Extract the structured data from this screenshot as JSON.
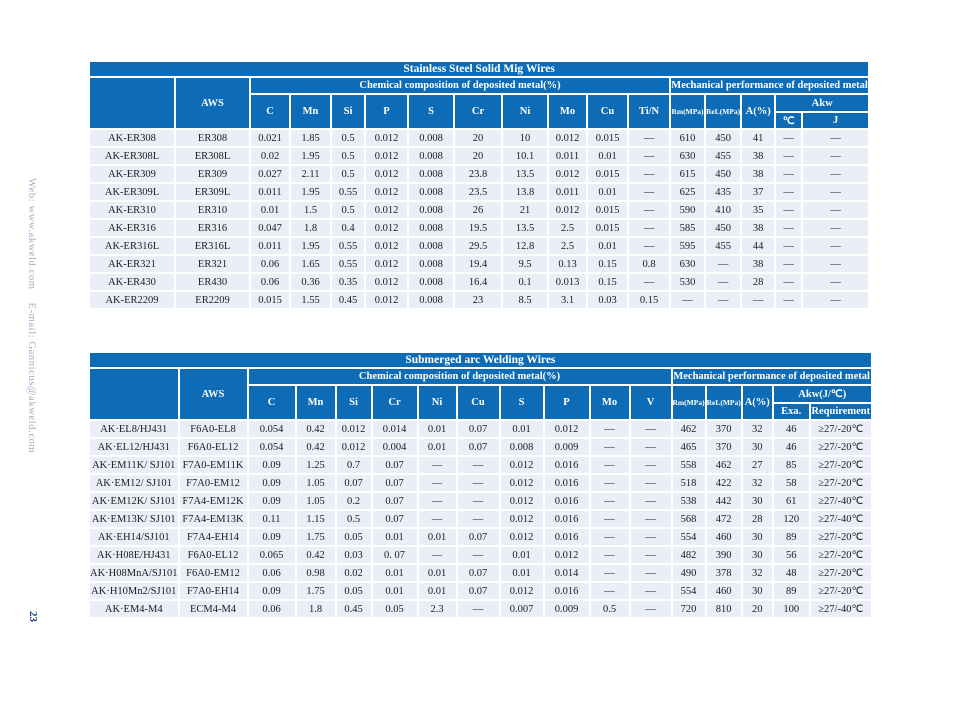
{
  "page": {
    "sidebar_text": "Web: www.akweld.com    E-mail: Gannicus@akweld.com",
    "page_number": "23"
  },
  "colors": {
    "header_blue": "#0d6cb5",
    "row_background": "#e9eef7",
    "sidebar_text_color": "#a4acc8",
    "page_number_color": "#1e3d8f",
    "body_text": "#1c1c1c"
  },
  "table1": {
    "title": "Stainless Steel Solid Mig Wires",
    "aws_label": "AWS",
    "chemical_header": "Chemical  composition of deposited metal(%)",
    "mechanical_header": "Mechanical performance of deposited metal",
    "chem_columns": [
      "C",
      "Mn",
      "Si",
      "P",
      "S",
      "Cr",
      "Ni",
      "Mo",
      "Cu",
      "Ti/N"
    ],
    "mech_columns": [
      "Rm(MPa)",
      "ReL(MPa)",
      "A(%)"
    ],
    "akw_label": "Akw",
    "akw_sub": [
      "℃",
      "J"
    ],
    "rows": [
      [
        "AK-ER308",
        "ER308",
        "0.021",
        "1.85",
        "0.5",
        "0.012",
        "0.008",
        "20",
        "10",
        "0.012",
        "0.015",
        "—",
        "610",
        "450",
        "41",
        "—",
        "—"
      ],
      [
        "AK-ER308L",
        "ER308L",
        "0.02",
        "1.95",
        "0.5",
        "0.012",
        "0.008",
        "20",
        "10.1",
        "0.011",
        "0.01",
        "—",
        "630",
        "455",
        "38",
        "—",
        "—"
      ],
      [
        "AK-ER309",
        "ER309",
        "0.027",
        "2.11",
        "0.5",
        "0.012",
        "0.008",
        "23.8",
        "13.5",
        "0.012",
        "0.015",
        "—",
        "615",
        "450",
        "38",
        "—",
        "—"
      ],
      [
        "AK-ER309L",
        "ER309L",
        "0.011",
        "1.95",
        "0.55",
        "0.012",
        "0.008",
        "23.5",
        "13.8",
        "0.011",
        "0.01",
        "—",
        "625",
        "435",
        "37",
        "—",
        "—"
      ],
      [
        "AK-ER310",
        "ER310",
        "0.01",
        "1.5",
        "0.5",
        "0.012",
        "0.008",
        "26",
        "21",
        "0.012",
        "0.015",
        "—",
        "590",
        "410",
        "35",
        "—",
        "—"
      ],
      [
        "AK-ER316",
        "ER316",
        "0.047",
        "1.8",
        "0.4",
        "0.012",
        "0.008",
        "19.5",
        "13.5",
        "2.5",
        "0.015",
        "—",
        "585",
        "450",
        "38",
        "—",
        "—"
      ],
      [
        "AK-ER316L",
        "ER316L",
        "0.011",
        "1.95",
        "0.55",
        "0.012",
        "0.008",
        "29.5",
        "12.8",
        "2.5",
        "0.01",
        "—",
        "595",
        "455",
        "44",
        "—",
        "—"
      ],
      [
        "AK-ER321",
        "ER321",
        "0.06",
        "1.65",
        "0.55",
        "0.012",
        "0.008",
        "19.4",
        "9.5",
        "0.13",
        "0.15",
        "0.8",
        "630",
        "—",
        "38",
        "—",
        "—"
      ],
      [
        "AK-ER430",
        "ER430",
        "0.06",
        "0.36",
        "0.35",
        "0.012",
        "0.008",
        "16.4",
        "0.1",
        "0.013",
        "0.15",
        "—",
        "530",
        "—",
        "28",
        "—",
        "—"
      ],
      [
        "AK-ER2209",
        "ER2209",
        "0.015",
        "1.55",
        "0.45",
        "0.012",
        "0.008",
        "23",
        "8.5",
        "3.1",
        "0.03",
        "0.15",
        "—",
        "—",
        "—",
        "—",
        "—"
      ]
    ]
  },
  "table2": {
    "title": "Submerged arc Welding Wires",
    "aws_label": "AWS",
    "chemical_header": "Chemical  composition of deposited metal(%)",
    "mechanical_header": "Mechanical performance of deposited  metal",
    "chem_columns": [
      "C",
      "Mn",
      "Si",
      "Cr",
      "Ni",
      "Cu",
      "S",
      "P",
      "Mo",
      "V"
    ],
    "mech_columns": [
      "Rm(MPa)",
      "ReL(MPa)",
      "A(%)"
    ],
    "akw_label": "Akw(J/℃)",
    "akw_sub": [
      "Exa.",
      "Requirement"
    ],
    "rows": [
      [
        "AK·EL8/HJ431",
        "F6A0-EL8",
        "0.054",
        "0.42",
        "0.012",
        "0.014",
        "0.01",
        "0.07",
        "0.01",
        "0.012",
        "—",
        "—",
        "462",
        "370",
        "32",
        "46",
        "≥27/-20℃"
      ],
      [
        "AK·EL12/HJ431",
        "F6A0-EL12",
        "0.054",
        "0.42",
        "0.012",
        "0.004",
        "0.01",
        "0.07",
        "0.008",
        "0.009",
        "—",
        "—",
        "465",
        "370",
        "30",
        "46",
        "≥27/-20℃"
      ],
      [
        "AK·EM11K/ SJ101",
        "F7A0-EM11K",
        "0.09",
        "1.25",
        "0.7",
        "0.07",
        "—",
        "—",
        "0.012",
        "0.016",
        "—",
        "—",
        "558",
        "462",
        "27",
        "85",
        "≥27/-20℃"
      ],
      [
        "AK·EM12/ SJ101",
        "F7A0-EM12",
        "0.09",
        "1.05",
        "0.07",
        "0.07",
        "—",
        "—",
        "0.012",
        "0.016",
        "—",
        "—",
        "518",
        "422",
        "32",
        "58",
        "≥27/-20℃"
      ],
      [
        "AK·EM12K/ SJ101",
        "F7A4-EM12K",
        "0.09",
        "1.05",
        "0.2",
        "0.07",
        "—",
        "—",
        "0.012",
        "0.016",
        "—",
        "—",
        "538",
        "442",
        "30",
        "61",
        "≥27/-40℃"
      ],
      [
        "AK·EM13K/ SJ101",
        "F7A4-EM13K",
        "0.11",
        "1.15",
        "0.5",
        "0.07",
        "—",
        "—",
        "0.012",
        "0.016",
        "—",
        "—",
        "568",
        "472",
        "28",
        "120",
        "≥27/-40℃"
      ],
      [
        "AK·EH14/SJ101",
        "F7A4-EH14",
        "0.09",
        "1.75",
        "0.05",
        "0.01",
        "0.01",
        "0.07",
        "0.012",
        "0.016",
        "—",
        "—",
        "554",
        "460",
        "30",
        "89",
        "≥27/-20℃"
      ],
      [
        "AK·H08E/HJ431",
        "F6A0-EL12",
        "0.065",
        "0.42",
        "0.03",
        "0. 07",
        "—",
        "—",
        "0.01",
        "0.012",
        "—",
        "—",
        "482",
        "390",
        "30",
        "56",
        "≥27/-20℃"
      ],
      [
        "AK·H08MnA/SJ101",
        "F6A0-EM12",
        "0.06",
        "0.98",
        "0.02",
        "0.01",
        "0.01",
        "0.07",
        "0.01",
        "0.014",
        "—",
        "—",
        "490",
        "378",
        "32",
        "48",
        "≥27/-20℃"
      ],
      [
        "AK·H10Mn2/SJ101",
        "F7A0-EH14",
        "0.09",
        "1.75",
        "0.05",
        "0.01",
        "0.01",
        "0.07",
        "0.012",
        "0.016",
        "—",
        "—",
        "554",
        "460",
        "30",
        "89",
        "≥27/-20℃"
      ],
      [
        "AK·EM4-M4",
        "ECM4-M4",
        "0.06",
        "1.8",
        "0.45",
        "0.05",
        "2.3",
        "—",
        "0.007",
        "0.009",
        "0.5",
        "—",
        "720",
        "810",
        "20",
        "100",
        "≥27/-40℃"
      ]
    ]
  }
}
